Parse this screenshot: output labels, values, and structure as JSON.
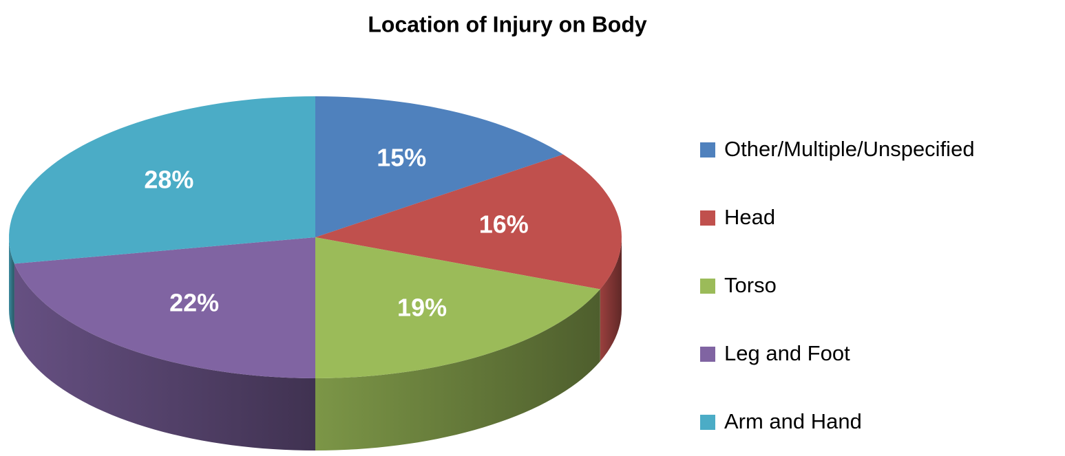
{
  "chart_data": {
    "type": "pie",
    "title": "Location of Injury on Body",
    "categories": [
      "Other/Multiple/Unspecified",
      "Head",
      "Torso",
      "Leg and Foot",
      "Arm and Hand"
    ],
    "values": [
      15,
      16,
      19,
      22,
      28
    ],
    "value_labels": [
      "15%",
      "16%",
      "19%",
      "22%",
      "28%"
    ],
    "colors": [
      "#4f81bd",
      "#c0504d",
      "#9bbb59",
      "#8064a2",
      "#4bacc6"
    ],
    "legend": "right"
  }
}
